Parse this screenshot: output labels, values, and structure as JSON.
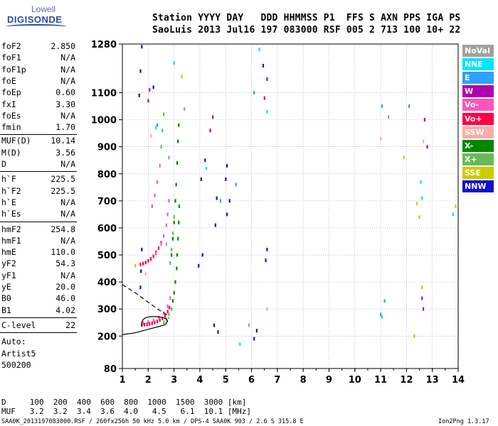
{
  "logo": {
    "line1": "Lowell",
    "line2": "DIGISONDE"
  },
  "header": {
    "line1": "Station YYYY DAY   DDD HHMMSS P1  FFS S AXN PPS IGA PS",
    "line2": "SaoLuis 2013 Jul16 197 083000 RSF 005 2 713 100 10+ 22"
  },
  "params_group1": [
    {
      "name": "foF2",
      "value": "2.850"
    },
    {
      "name": "foF1",
      "value": "N/A"
    },
    {
      "name": "foF1p",
      "value": "N/A"
    },
    {
      "name": "foE",
      "value": "N/A"
    },
    {
      "name": "foEp",
      "value": "0.60"
    },
    {
      "name": "fxI",
      "value": "3.30"
    },
    {
      "name": "foEs",
      "value": "N/A"
    },
    {
      "name": "fmin",
      "value": "1.70"
    }
  ],
  "params_group2": [
    {
      "name": "MUF(D)",
      "value": "10.14"
    },
    {
      "name": "M(D)",
      "value": "3.56"
    },
    {
      "name": "D",
      "value": "N/A"
    }
  ],
  "params_group3": [
    {
      "name": "h`F",
      "value": "225.5"
    },
    {
      "name": "h`F2",
      "value": "225.5"
    },
    {
      "name": "h`E",
      "value": "N/A"
    },
    {
      "name": "h`Es",
      "value": "N/A"
    }
  ],
  "params_group4": [
    {
      "name": "hmF2",
      "value": "254.8"
    },
    {
      "name": "hmF1",
      "value": "N/A"
    },
    {
      "name": "hmE",
      "value": "110.0"
    },
    {
      "name": "yF2",
      "value": "54.3"
    },
    {
      "name": "yF1",
      "value": "N/A"
    },
    {
      "name": "yE",
      "value": "20.0"
    },
    {
      "name": "B0",
      "value": "46.0"
    },
    {
      "name": "B1",
      "value": "4.02"
    }
  ],
  "c_level": {
    "name": "C-level",
    "value": "22"
  },
  "autoscaling": {
    "line1": "Auto:",
    "line2": "Artist5",
    "line3": "500200"
  },
  "legend": [
    {
      "label": "NoVal",
      "color": "#a0a0a0"
    },
    {
      "label": "NNE",
      "color": "#00e5ff"
    },
    {
      "label": "E",
      "color": "#2ea0ff"
    },
    {
      "label": "W",
      "color": "#b000b0"
    },
    {
      "label": "Vo-",
      "color": "#ff55bb"
    },
    {
      "label": "Vo+",
      "color": "#ff0044"
    },
    {
      "label": "SSW",
      "color": "#ffaaaa"
    },
    {
      "label": "X-",
      "color": "#008800"
    },
    {
      "label": "X+",
      "color": "#66bb55"
    },
    {
      "label": "SSE",
      "color": "#cccc00"
    },
    {
      "label": "NNW",
      "color": "#1010cc"
    }
  ],
  "footer": {
    "d_row": "D     100  200  400  600  800  1000  1500  3000 [km]",
    "muf_row": "MUF   3.2  3.2  3.4  3.6  4.0   4.5   6.1  10.1 [MHz]",
    "info": "SAA0K_2013197083000.RSF / 260fx256h 50 kHz 5.0 km / DPS-4 SAA0K 903 / 2.6 S 315.8 E",
    "version": "Ion2Png 1.3.17"
  },
  "chart_data": {
    "type": "scatter",
    "xlim": [
      1,
      14
    ],
    "ylim": [
      80,
      1280
    ],
    "xticks": [
      1,
      2,
      3,
      4,
      5,
      6,
      7,
      8,
      9,
      10,
      11,
      12,
      13,
      14
    ],
    "yticks": [
      80,
      200,
      300,
      400,
      500,
      600,
      700,
      800,
      900,
      1000,
      1100,
      1280
    ],
    "grid": true,
    "series": [
      {
        "name": "Vo+",
        "color": "#ff0044",
        "points": [
          [
            1.75,
            240
          ],
          [
            1.85,
            242
          ],
          [
            1.95,
            243
          ],
          [
            2.05,
            245
          ],
          [
            2.15,
            247
          ],
          [
            2.25,
            250
          ],
          [
            2.35,
            254
          ],
          [
            2.45,
            259
          ],
          [
            2.55,
            265
          ],
          [
            2.65,
            275
          ],
          [
            2.75,
            290
          ],
          [
            2.82,
            305
          ],
          [
            1.7,
            465
          ],
          [
            1.8,
            468
          ],
          [
            1.9,
            472
          ],
          [
            2.0,
            478
          ],
          [
            2.1,
            485
          ],
          [
            2.2,
            495
          ],
          [
            2.3,
            510
          ],
          [
            2.4,
            525
          ],
          [
            2.5,
            545
          ]
        ]
      },
      {
        "name": "Vo-",
        "color": "#ff55bb",
        "points": [
          [
            1.8,
            248
          ],
          [
            2.0,
            252
          ],
          [
            2.2,
            258
          ],
          [
            2.4,
            268
          ],
          [
            2.6,
            285
          ],
          [
            2.75,
            310
          ],
          [
            2.85,
            340
          ],
          [
            2.3,
            505
          ],
          [
            2.5,
            540
          ],
          [
            2.6,
            570
          ],
          [
            2.7,
            610
          ],
          [
            2.75,
            650
          ],
          [
            2.8,
            700
          ],
          [
            2.15,
            680
          ],
          [
            2.25,
            720
          ],
          [
            2.35,
            770
          ],
          [
            2.45,
            830
          ]
        ]
      },
      {
        "name": "X-",
        "color": "#008800",
        "points": [
          [
            2.9,
            300
          ],
          [
            2.95,
            330
          ],
          [
            3.0,
            360
          ],
          [
            3.05,
            400
          ],
          [
            3.1,
            450
          ],
          [
            3.12,
            500
          ],
          [
            3.15,
            560
          ],
          [
            3.18,
            620
          ],
          [
            3.2,
            680
          ],
          [
            2.9,
            500
          ],
          [
            2.95,
            560
          ],
          [
            3.0,
            620
          ],
          [
            3.05,
            700
          ],
          [
            3.08,
            760
          ],
          [
            3.12,
            840
          ],
          [
            3.15,
            920
          ],
          [
            3.18,
            980
          ]
        ]
      },
      {
        "name": "X+",
        "color": "#66bb55",
        "points": [
          [
            2.6,
            250
          ],
          [
            2.7,
            262
          ],
          [
            2.8,
            280
          ],
          [
            2.9,
            300
          ],
          [
            2.85,
            470
          ],
          [
            2.9,
            520
          ],
          [
            2.95,
            580
          ],
          [
            3.0,
            640
          ],
          [
            2.5,
            900
          ],
          [
            2.55,
            960
          ],
          [
            2.6,
            1020
          ]
        ]
      },
      {
        "name": "NNW",
        "color": "#1010cc",
        "points": [
          [
            1.7,
            380
          ],
          [
            1.72,
            440
          ],
          [
            1.75,
            520
          ],
          [
            1.65,
            1090
          ],
          [
            1.7,
            1180
          ],
          [
            1.75,
            1270
          ],
          [
            2.2,
            1120
          ],
          [
            3.95,
            460
          ],
          [
            4.1,
            500
          ],
          [
            4.05,
            780
          ],
          [
            4.2,
            850
          ],
          [
            4.6,
            610
          ],
          [
            4.65,
            710
          ],
          [
            5.05,
            650
          ],
          [
            5.15,
            700
          ],
          [
            4.55,
            240
          ],
          [
            4.7,
            215
          ],
          [
            5.0,
            780
          ],
          [
            5.05,
            830
          ],
          [
            6.1,
            190
          ],
          [
            6.2,
            220
          ],
          [
            6.55,
            480
          ],
          [
            6.6,
            520
          ],
          [
            6.45,
            1200
          ]
        ]
      },
      {
        "name": "W",
        "color": "#b000b0",
        "points": [
          [
            2.0,
            1070
          ],
          [
            2.05,
            1110
          ],
          [
            4.4,
            960
          ],
          [
            4.5,
            1010
          ],
          [
            6.5,
            1080
          ],
          [
            6.6,
            1150
          ],
          [
            12.6,
            340
          ],
          [
            12.65,
            300
          ],
          [
            12.7,
            1000
          ],
          [
            12.8,
            900
          ]
        ]
      },
      {
        "name": "E",
        "color": "#2ea0ff",
        "points": [
          [
            2.35,
            980
          ],
          [
            4.8,
            700
          ],
          [
            5.4,
            760
          ],
          [
            6.1,
            1100
          ],
          [
            11.05,
            1050
          ],
          [
            11.0,
            280
          ],
          [
            11.15,
            330
          ],
          [
            12.1,
            1050
          ]
        ]
      },
      {
        "name": "NNE",
        "color": "#00e5ff",
        "points": [
          [
            2.3,
            970
          ],
          [
            3.0,
            1210
          ],
          [
            4.25,
            820
          ],
          [
            5.55,
            170
          ],
          [
            6.3,
            1260
          ],
          [
            6.6,
            1030
          ],
          [
            11.05,
            270
          ],
          [
            12.55,
            770
          ],
          [
            12.6,
            710
          ],
          [
            13.8,
            650
          ]
        ]
      },
      {
        "name": "SSE",
        "color": "#cccc00",
        "points": [
          [
            1.5,
            460
          ],
          [
            3.3,
            1160
          ],
          [
            12.4,
            690
          ],
          [
            12.5,
            640
          ],
          [
            12.6,
            380
          ],
          [
            13.9,
            680
          ],
          [
            11.9,
            860
          ],
          [
            12.3,
            200
          ]
        ]
      },
      {
        "name": "SSW",
        "color": "#ffaaaa",
        "points": [
          [
            1.9,
            430
          ],
          [
            2.1,
            940
          ],
          [
            6.6,
            300
          ],
          [
            11.0,
            930
          ],
          [
            12.65,
            920
          ]
        ]
      },
      {
        "name": "NoVal",
        "color": "#a0a0a0",
        "points": [
          [
            2.7,
            540
          ],
          [
            2.8,
            860
          ],
          [
            3.4,
            1040
          ],
          [
            5.9,
            240
          ],
          [
            11.3,
            1010
          ]
        ]
      }
    ],
    "curves": [
      {
        "name": "profile_solid",
        "style": "solid",
        "points": [
          [
            1.0,
            205
          ],
          [
            1.5,
            212
          ],
          [
            2.0,
            225
          ],
          [
            2.4,
            235
          ],
          [
            2.6,
            240
          ],
          [
            2.7,
            246
          ],
          [
            2.75,
            256
          ],
          [
            2.7,
            264
          ],
          [
            2.5,
            270
          ],
          [
            2.3,
            272
          ],
          [
            2.1,
            272
          ],
          [
            1.9,
            268
          ],
          [
            1.8,
            260
          ],
          [
            1.75,
            250
          ],
          [
            1.75,
            238
          ]
        ]
      },
      {
        "name": "profile_dashed",
        "style": "dashed",
        "points": [
          [
            1.0,
            390
          ],
          [
            1.5,
            360
          ],
          [
            2.0,
            325
          ],
          [
            2.4,
            298
          ],
          [
            2.7,
            280
          ],
          [
            2.8,
            265
          ]
        ]
      }
    ]
  }
}
